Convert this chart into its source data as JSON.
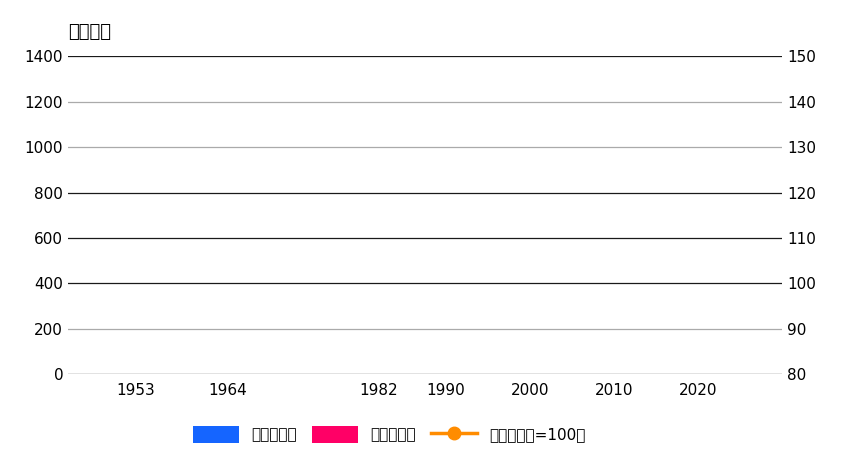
{
  "title": "常住人口",
  "x_ticks": [
    1953,
    1964,
    1982,
    1990,
    2000,
    2010,
    2020
  ],
  "y_left_ticks": [
    0,
    200,
    400,
    600,
    800,
    1000,
    1200,
    1400
  ],
  "y_left_min": 0,
  "y_left_max": 1400,
  "y_right_ticks": [
    80,
    90,
    100,
    110,
    120,
    130,
    140,
    150
  ],
  "y_right_min": 80,
  "y_right_max": 150,
  "legend_male_color": "#1565FF",
  "legend_female_color": "#FF0066",
  "legend_ratio_color": "#FF8C00",
  "legend_male_label": "男（万人）",
  "legend_female_label": "女（万人）",
  "legend_ratio_label": "性别比（女=100）",
  "background_color": "#ffffff",
  "grid_color_dark": "#222222",
  "grid_color_light": "#999999",
  "title_fontsize": 13,
  "axis_tick_fontsize": 11
}
